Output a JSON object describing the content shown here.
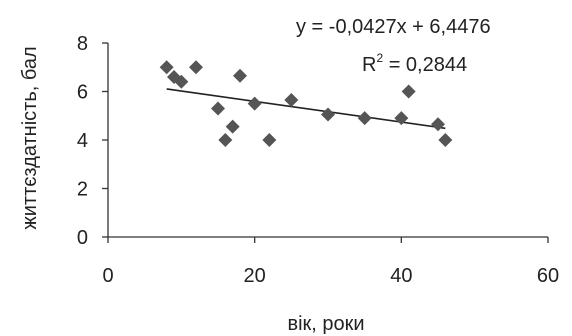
{
  "chart_data": {
    "type": "scatter",
    "title": "",
    "xlabel": "вік, роки",
    "ylabel": "життєздатність, бал",
    "xlim": [
      0,
      60
    ],
    "ylim": [
      0,
      8
    ],
    "xticks": [
      "0",
      "20",
      "40",
      "60"
    ],
    "yticks": [
      "0",
      "2",
      "4",
      "6",
      "8"
    ],
    "grid": false,
    "legend": "none",
    "marker": "diamond",
    "marker_color": "#555555",
    "line_color": "#222222",
    "points": [
      {
        "x": 8,
        "y": 7.0
      },
      {
        "x": 9,
        "y": 6.6
      },
      {
        "x": 10,
        "y": 6.4
      },
      {
        "x": 12,
        "y": 7.0
      },
      {
        "x": 15,
        "y": 5.3
      },
      {
        "x": 16,
        "y": 4.0
      },
      {
        "x": 17,
        "y": 4.55
      },
      {
        "x": 18,
        "y": 6.65
      },
      {
        "x": 20,
        "y": 5.5
      },
      {
        "x": 22,
        "y": 4.0
      },
      {
        "x": 25,
        "y": 5.65
      },
      {
        "x": 30,
        "y": 5.05
      },
      {
        "x": 35,
        "y": 4.9
      },
      {
        "x": 40,
        "y": 4.9
      },
      {
        "x": 41,
        "y": 6.0
      },
      {
        "x": 45,
        "y": 4.65
      },
      {
        "x": 46,
        "y": 4.0
      }
    ],
    "trendline": {
      "slope": -0.0427,
      "intercept": 6.4476,
      "x_range": [
        8,
        46
      ],
      "equation": "y = -0,0427x + 6,4476",
      "r2_label": "R",
      "r2_exponent": "2",
      "r2_value": " = 0,2844"
    }
  }
}
